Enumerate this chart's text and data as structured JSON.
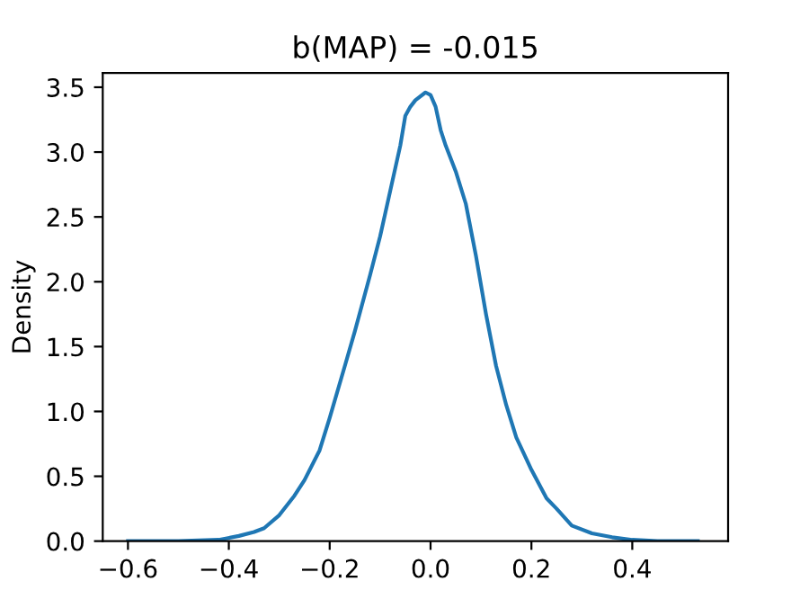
{
  "chart_data": {
    "type": "line",
    "title": "b(MAP) = -0.015",
    "ylabel": "Density",
    "x": [
      -0.6,
      -0.5,
      -0.42,
      -0.38,
      -0.35,
      -0.33,
      -0.3,
      -0.27,
      -0.25,
      -0.22,
      -0.2,
      -0.17,
      -0.15,
      -0.12,
      -0.1,
      -0.08,
      -0.06,
      -0.05,
      -0.04,
      -0.03,
      -0.01,
      0.0,
      0.01,
      0.02,
      0.03,
      0.05,
      0.07,
      0.09,
      0.11,
      0.13,
      0.15,
      0.17,
      0.2,
      0.23,
      0.25,
      0.28,
      0.32,
      0.36,
      0.4,
      0.45,
      0.53
    ],
    "series": [
      {
        "color": "#1f77b4",
        "values": [
          0.0,
          0.0,
          0.01,
          0.04,
          0.07,
          0.1,
          0.2,
          0.35,
          0.47,
          0.7,
          0.95,
          1.35,
          1.62,
          2.05,
          2.35,
          2.7,
          3.05,
          3.28,
          3.35,
          3.4,
          3.46,
          3.44,
          3.35,
          3.17,
          3.05,
          2.85,
          2.6,
          2.2,
          1.75,
          1.35,
          1.05,
          0.8,
          0.55,
          0.33,
          0.25,
          0.12,
          0.06,
          0.03,
          0.01,
          0.0,
          0.0
        ]
      }
    ],
    "xlim": [
      -0.65,
      0.59
    ],
    "ylim": [
      0,
      3.61
    ],
    "xticks": [
      {
        "value": -0.6,
        "label": "−0.6"
      },
      {
        "value": -0.4,
        "label": "−0.4"
      },
      {
        "value": -0.2,
        "label": "−0.2"
      },
      {
        "value": 0.0,
        "label": "0.0"
      },
      {
        "value": 0.2,
        "label": "0.2"
      },
      {
        "value": 0.4,
        "label": "0.4"
      }
    ],
    "yticks": [
      {
        "value": 0,
        "label": "0.0"
      },
      {
        "value": 0.5,
        "label": "0.5"
      },
      {
        "value": 1.0,
        "label": "1.0"
      },
      {
        "value": 1.5,
        "label": "1.5"
      },
      {
        "value": 2.0,
        "label": "2.0"
      },
      {
        "value": 2.5,
        "label": "2.5"
      },
      {
        "value": 3.0,
        "label": "3.0"
      },
      {
        "value": 3.5,
        "label": "3.5"
      }
    ],
    "line_style": "solid"
  }
}
